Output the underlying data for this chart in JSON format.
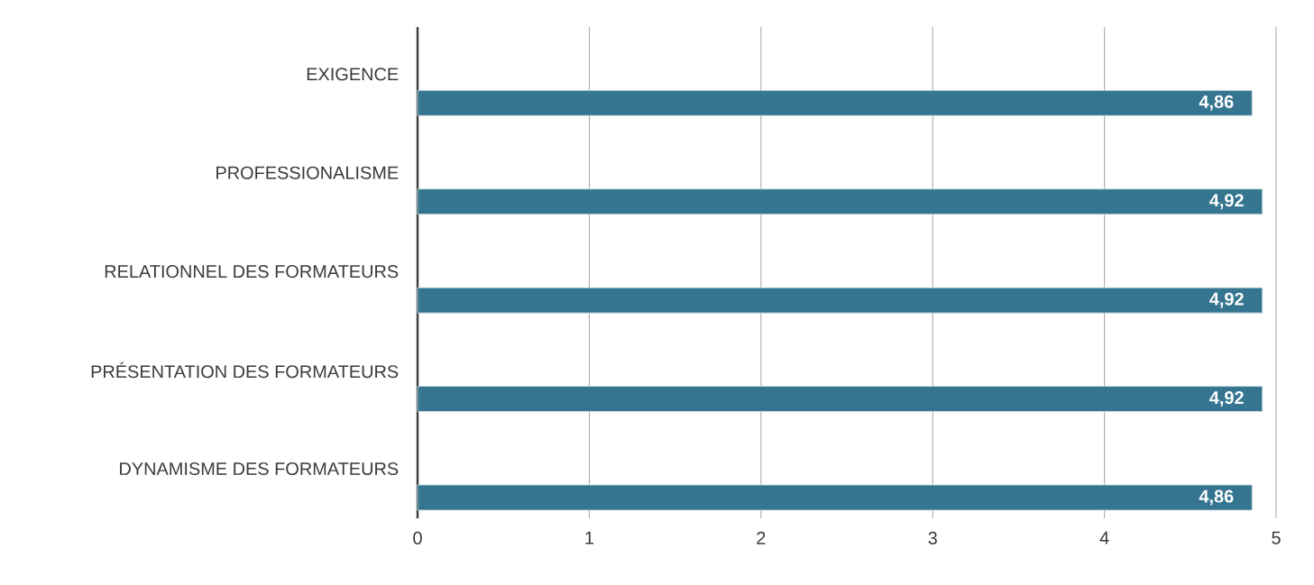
{
  "chart_data": {
    "type": "bar",
    "orientation": "horizontal",
    "categories": [
      "EXIGENCE",
      "PROFESSIONALISME",
      "RELATIONNEL DES FORMATEURS",
      "PRÉSENTATION DES FORMATEURS",
      "DYNAMISME DES FORMATEURS"
    ],
    "values": [
      4.86,
      4.92,
      4.92,
      4.92,
      4.86
    ],
    "value_labels": [
      "4,86",
      "4,92",
      "4,92",
      "4,92",
      "4,86"
    ],
    "color": "#35758f",
    "xlim": [
      0,
      5
    ],
    "xticks": [
      0,
      1,
      2,
      3,
      4,
      5
    ],
    "grid": "x"
  }
}
